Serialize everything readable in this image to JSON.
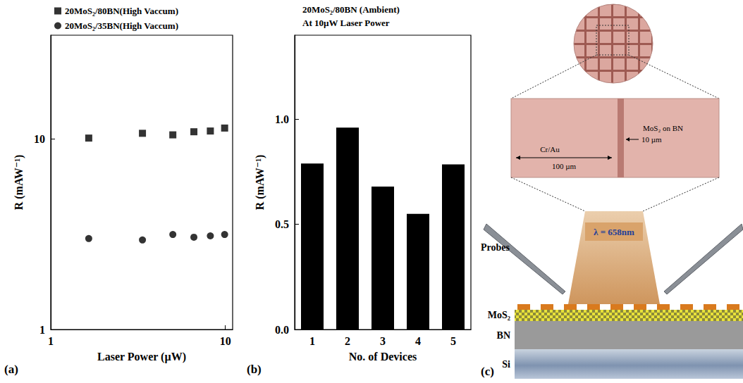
{
  "chart_data": [
    {
      "type": "scatter",
      "panel_label": "(a)",
      "log": true,
      "x_label": "Laser Power (µW)",
      "y_label": "R (mAW⁻¹)",
      "xlim": [
        1,
        11
      ],
      "xticks": [
        1,
        10
      ],
      "ylim": [
        1,
        35
      ],
      "yticks": [
        1,
        10
      ],
      "grid": false,
      "legend": "top-left",
      "series": [
        {
          "name": "20MoS₂/80BN(High Vaccum)",
          "marker": "square",
          "color": "#000000",
          "x": [
            1.65,
            3.35,
            5.0,
            6.6,
            8.2,
            9.9
          ],
          "values": [
            10.1,
            10.7,
            10.5,
            10.9,
            11.0,
            11.4
          ]
        },
        {
          "name": "20MoS₂/35BN(High Vaccum)",
          "marker": "circle",
          "color": "#000000",
          "x": [
            1.65,
            3.35,
            5.0,
            6.6,
            8.2,
            9.9
          ],
          "values": [
            3.0,
            2.95,
            3.15,
            3.05,
            3.1,
            3.15
          ]
        }
      ]
    },
    {
      "type": "bar",
      "panel_label": "(b)",
      "title": "20MoS₂/80BN (Ambient)",
      "subtitle": "At 10µW Laser Power",
      "x_label": "No. of Devices",
      "y_label": "R (mAW⁻¹)",
      "categories": [
        "1",
        "2",
        "3",
        "4",
        "5"
      ],
      "values": [
        0.79,
        0.96,
        0.68,
        0.55,
        0.785
      ],
      "color": "#000000",
      "grid": false,
      "ylim": [
        0,
        1.4
      ],
      "yticks": [
        {
          "value": 0,
          "label": "0.0"
        },
        {
          "value": 0.5,
          "label": "0.5"
        },
        {
          "value": 1,
          "label": "1.0"
        }
      ]
    }
  ],
  "diagram": {
    "panel_label": "(c)",
    "micrograph": {
      "pad_label": "Cr/Au",
      "pad_width": "100 µm",
      "channel_label": "MoS₂ on BN",
      "channel_width": "10 µm"
    },
    "schematic": {
      "probes": "Probes",
      "wavelength": "λ = 658nm",
      "layers": [
        "MoS₂",
        "BN",
        "Si"
      ]
    }
  }
}
